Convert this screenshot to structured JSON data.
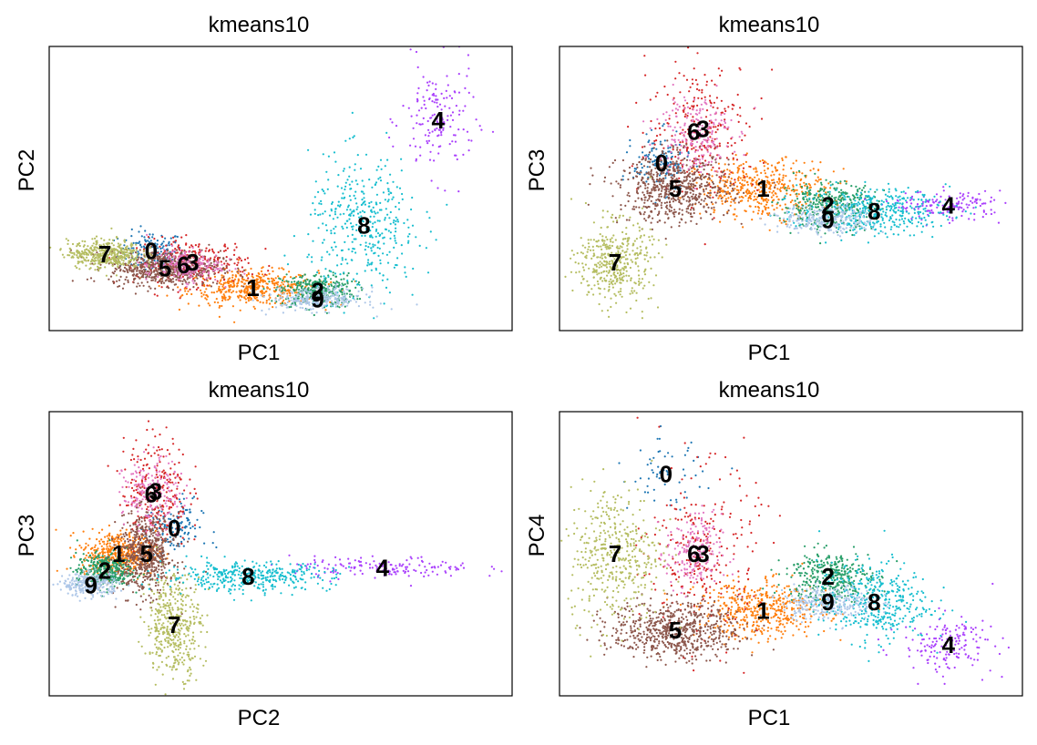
{
  "chart_data": [
    {
      "type": "scatter",
      "title": "kmeans10",
      "xlabel": "PC1",
      "ylabel": "PC2",
      "ticks": "none",
      "legend": "on data",
      "clusters": [
        {
          "name": "0",
          "color": "#1f77b4",
          "x": 0.22,
          "y": 0.28,
          "sx": 0.035,
          "sy": 0.035,
          "n": 140
        },
        {
          "name": "1",
          "color": "#ff7f0e",
          "x": 0.44,
          "y": 0.15,
          "sx": 0.07,
          "sy": 0.03,
          "n": 460
        },
        {
          "name": "2",
          "color": "#279e68",
          "x": 0.58,
          "y": 0.14,
          "sx": 0.04,
          "sy": 0.03,
          "n": 360
        },
        {
          "name": "3",
          "color": "#d62728",
          "x": 0.31,
          "y": 0.24,
          "sx": 0.06,
          "sy": 0.04,
          "n": 260
        },
        {
          "name": "4",
          "color": "#aa40fc",
          "x": 0.84,
          "y": 0.74,
          "sx": 0.04,
          "sy": 0.1,
          "n": 160
        },
        {
          "name": "5",
          "color": "#8c564b",
          "x": 0.25,
          "y": 0.22,
          "sx": 0.06,
          "sy": 0.03,
          "n": 640
        },
        {
          "name": "6",
          "color": "#e377c2",
          "x": 0.29,
          "y": 0.23,
          "sx": 0.04,
          "sy": 0.03,
          "n": 200
        },
        {
          "name": "7",
          "color": "#b5bd61",
          "x": 0.12,
          "y": 0.27,
          "sx": 0.04,
          "sy": 0.025,
          "n": 420
        },
        {
          "name": "8",
          "color": "#17becf",
          "x": 0.68,
          "y": 0.37,
          "sx": 0.06,
          "sy": 0.12,
          "n": 400
        },
        {
          "name": "9",
          "color": "#aec7e8",
          "x": 0.58,
          "y": 0.11,
          "sx": 0.05,
          "sy": 0.02,
          "n": 280
        }
      ]
    },
    {
      "type": "scatter",
      "title": "kmeans10",
      "xlabel": "PC1",
      "ylabel": "PC3",
      "ticks": "none",
      "legend": "on data",
      "clusters": [
        {
          "name": "0",
          "color": "#1f77b4",
          "x": 0.22,
          "y": 0.59,
          "sx": 0.03,
          "sy": 0.05,
          "n": 130
        },
        {
          "name": "1",
          "color": "#ff7f0e",
          "x": 0.44,
          "y": 0.5,
          "sx": 0.07,
          "sy": 0.05,
          "n": 460
        },
        {
          "name": "2",
          "color": "#279e68",
          "x": 0.58,
          "y": 0.44,
          "sx": 0.05,
          "sy": 0.04,
          "n": 360
        },
        {
          "name": "3",
          "color": "#d62728",
          "x": 0.31,
          "y": 0.71,
          "sx": 0.06,
          "sy": 0.12,
          "n": 260
        },
        {
          "name": "4",
          "color": "#aa40fc",
          "x": 0.84,
          "y": 0.44,
          "sx": 0.06,
          "sy": 0.025,
          "n": 160
        },
        {
          "name": "5",
          "color": "#8c564b",
          "x": 0.25,
          "y": 0.5,
          "sx": 0.06,
          "sy": 0.06,
          "n": 640
        },
        {
          "name": "6",
          "color": "#e377c2",
          "x": 0.29,
          "y": 0.7,
          "sx": 0.04,
          "sy": 0.07,
          "n": 200
        },
        {
          "name": "7",
          "color": "#b5bd61",
          "x": 0.12,
          "y": 0.24,
          "sx": 0.04,
          "sy": 0.07,
          "n": 420
        },
        {
          "name": "8",
          "color": "#17becf",
          "x": 0.68,
          "y": 0.42,
          "sx": 0.08,
          "sy": 0.04,
          "n": 400
        },
        {
          "name": "9",
          "color": "#aec7e8",
          "x": 0.58,
          "y": 0.39,
          "sx": 0.05,
          "sy": 0.025,
          "n": 280
        }
      ]
    },
    {
      "type": "scatter",
      "title": "kmeans10",
      "xlabel": "PC2",
      "ylabel": "PC3",
      "ticks": "none",
      "legend": "on data",
      "clusters": [
        {
          "name": "0",
          "color": "#1f77b4",
          "x": 0.27,
          "y": 0.59,
          "sx": 0.03,
          "sy": 0.05,
          "n": 130
        },
        {
          "name": "1",
          "color": "#ff7f0e",
          "x": 0.15,
          "y": 0.5,
          "sx": 0.04,
          "sy": 0.04,
          "n": 460
        },
        {
          "name": "2",
          "color": "#279e68",
          "x": 0.12,
          "y": 0.44,
          "sx": 0.03,
          "sy": 0.03,
          "n": 360
        },
        {
          "name": "3",
          "color": "#d62728",
          "x": 0.23,
          "y": 0.72,
          "sx": 0.035,
          "sy": 0.1,
          "n": 260
        },
        {
          "name": "4",
          "color": "#aa40fc",
          "x": 0.72,
          "y": 0.45,
          "sx": 0.1,
          "sy": 0.02,
          "n": 160
        },
        {
          "name": "5",
          "color": "#8c564b",
          "x": 0.21,
          "y": 0.5,
          "sx": 0.03,
          "sy": 0.07,
          "n": 640
        },
        {
          "name": "6",
          "color": "#e377c2",
          "x": 0.22,
          "y": 0.71,
          "sx": 0.03,
          "sy": 0.06,
          "n": 200
        },
        {
          "name": "7",
          "color": "#b5bd61",
          "x": 0.27,
          "y": 0.25,
          "sx": 0.03,
          "sy": 0.09,
          "n": 420
        },
        {
          "name": "8",
          "color": "#17becf",
          "x": 0.43,
          "y": 0.42,
          "sx": 0.09,
          "sy": 0.025,
          "n": 400
        },
        {
          "name": "9",
          "color": "#aec7e8",
          "x": 0.09,
          "y": 0.39,
          "sx": 0.03,
          "sy": 0.02,
          "n": 280
        }
      ]
    },
    {
      "type": "scatter",
      "title": "kmeans10",
      "xlabel": "PC1",
      "ylabel": "PC4",
      "ticks": "none",
      "legend": "on data",
      "clusters": [
        {
          "name": "0",
          "color": "#1f77b4",
          "x": 0.23,
          "y": 0.78,
          "sx": 0.04,
          "sy": 0.06,
          "n": 60
        },
        {
          "name": "1",
          "color": "#ff7f0e",
          "x": 0.44,
          "y": 0.3,
          "sx": 0.07,
          "sy": 0.05,
          "n": 460
        },
        {
          "name": "2",
          "color": "#279e68",
          "x": 0.58,
          "y": 0.42,
          "sx": 0.045,
          "sy": 0.045,
          "n": 360
        },
        {
          "name": "3",
          "color": "#d62728",
          "x": 0.31,
          "y": 0.5,
          "sx": 0.06,
          "sy": 0.15,
          "n": 260
        },
        {
          "name": "4",
          "color": "#aa40fc",
          "x": 0.84,
          "y": 0.18,
          "sx": 0.05,
          "sy": 0.05,
          "n": 160
        },
        {
          "name": "5",
          "color": "#8c564b",
          "x": 0.25,
          "y": 0.23,
          "sx": 0.07,
          "sy": 0.05,
          "n": 640
        },
        {
          "name": "6",
          "color": "#e377c2",
          "x": 0.29,
          "y": 0.5,
          "sx": 0.03,
          "sy": 0.07,
          "n": 200
        },
        {
          "name": "7",
          "color": "#b5bd61",
          "x": 0.12,
          "y": 0.5,
          "sx": 0.05,
          "sy": 0.12,
          "n": 420
        },
        {
          "name": "8",
          "color": "#17becf",
          "x": 0.68,
          "y": 0.33,
          "sx": 0.06,
          "sy": 0.07,
          "n": 400
        },
        {
          "name": "9",
          "color": "#aec7e8",
          "x": 0.58,
          "y": 0.33,
          "sx": 0.05,
          "sy": 0.03,
          "n": 280
        }
      ]
    }
  ]
}
